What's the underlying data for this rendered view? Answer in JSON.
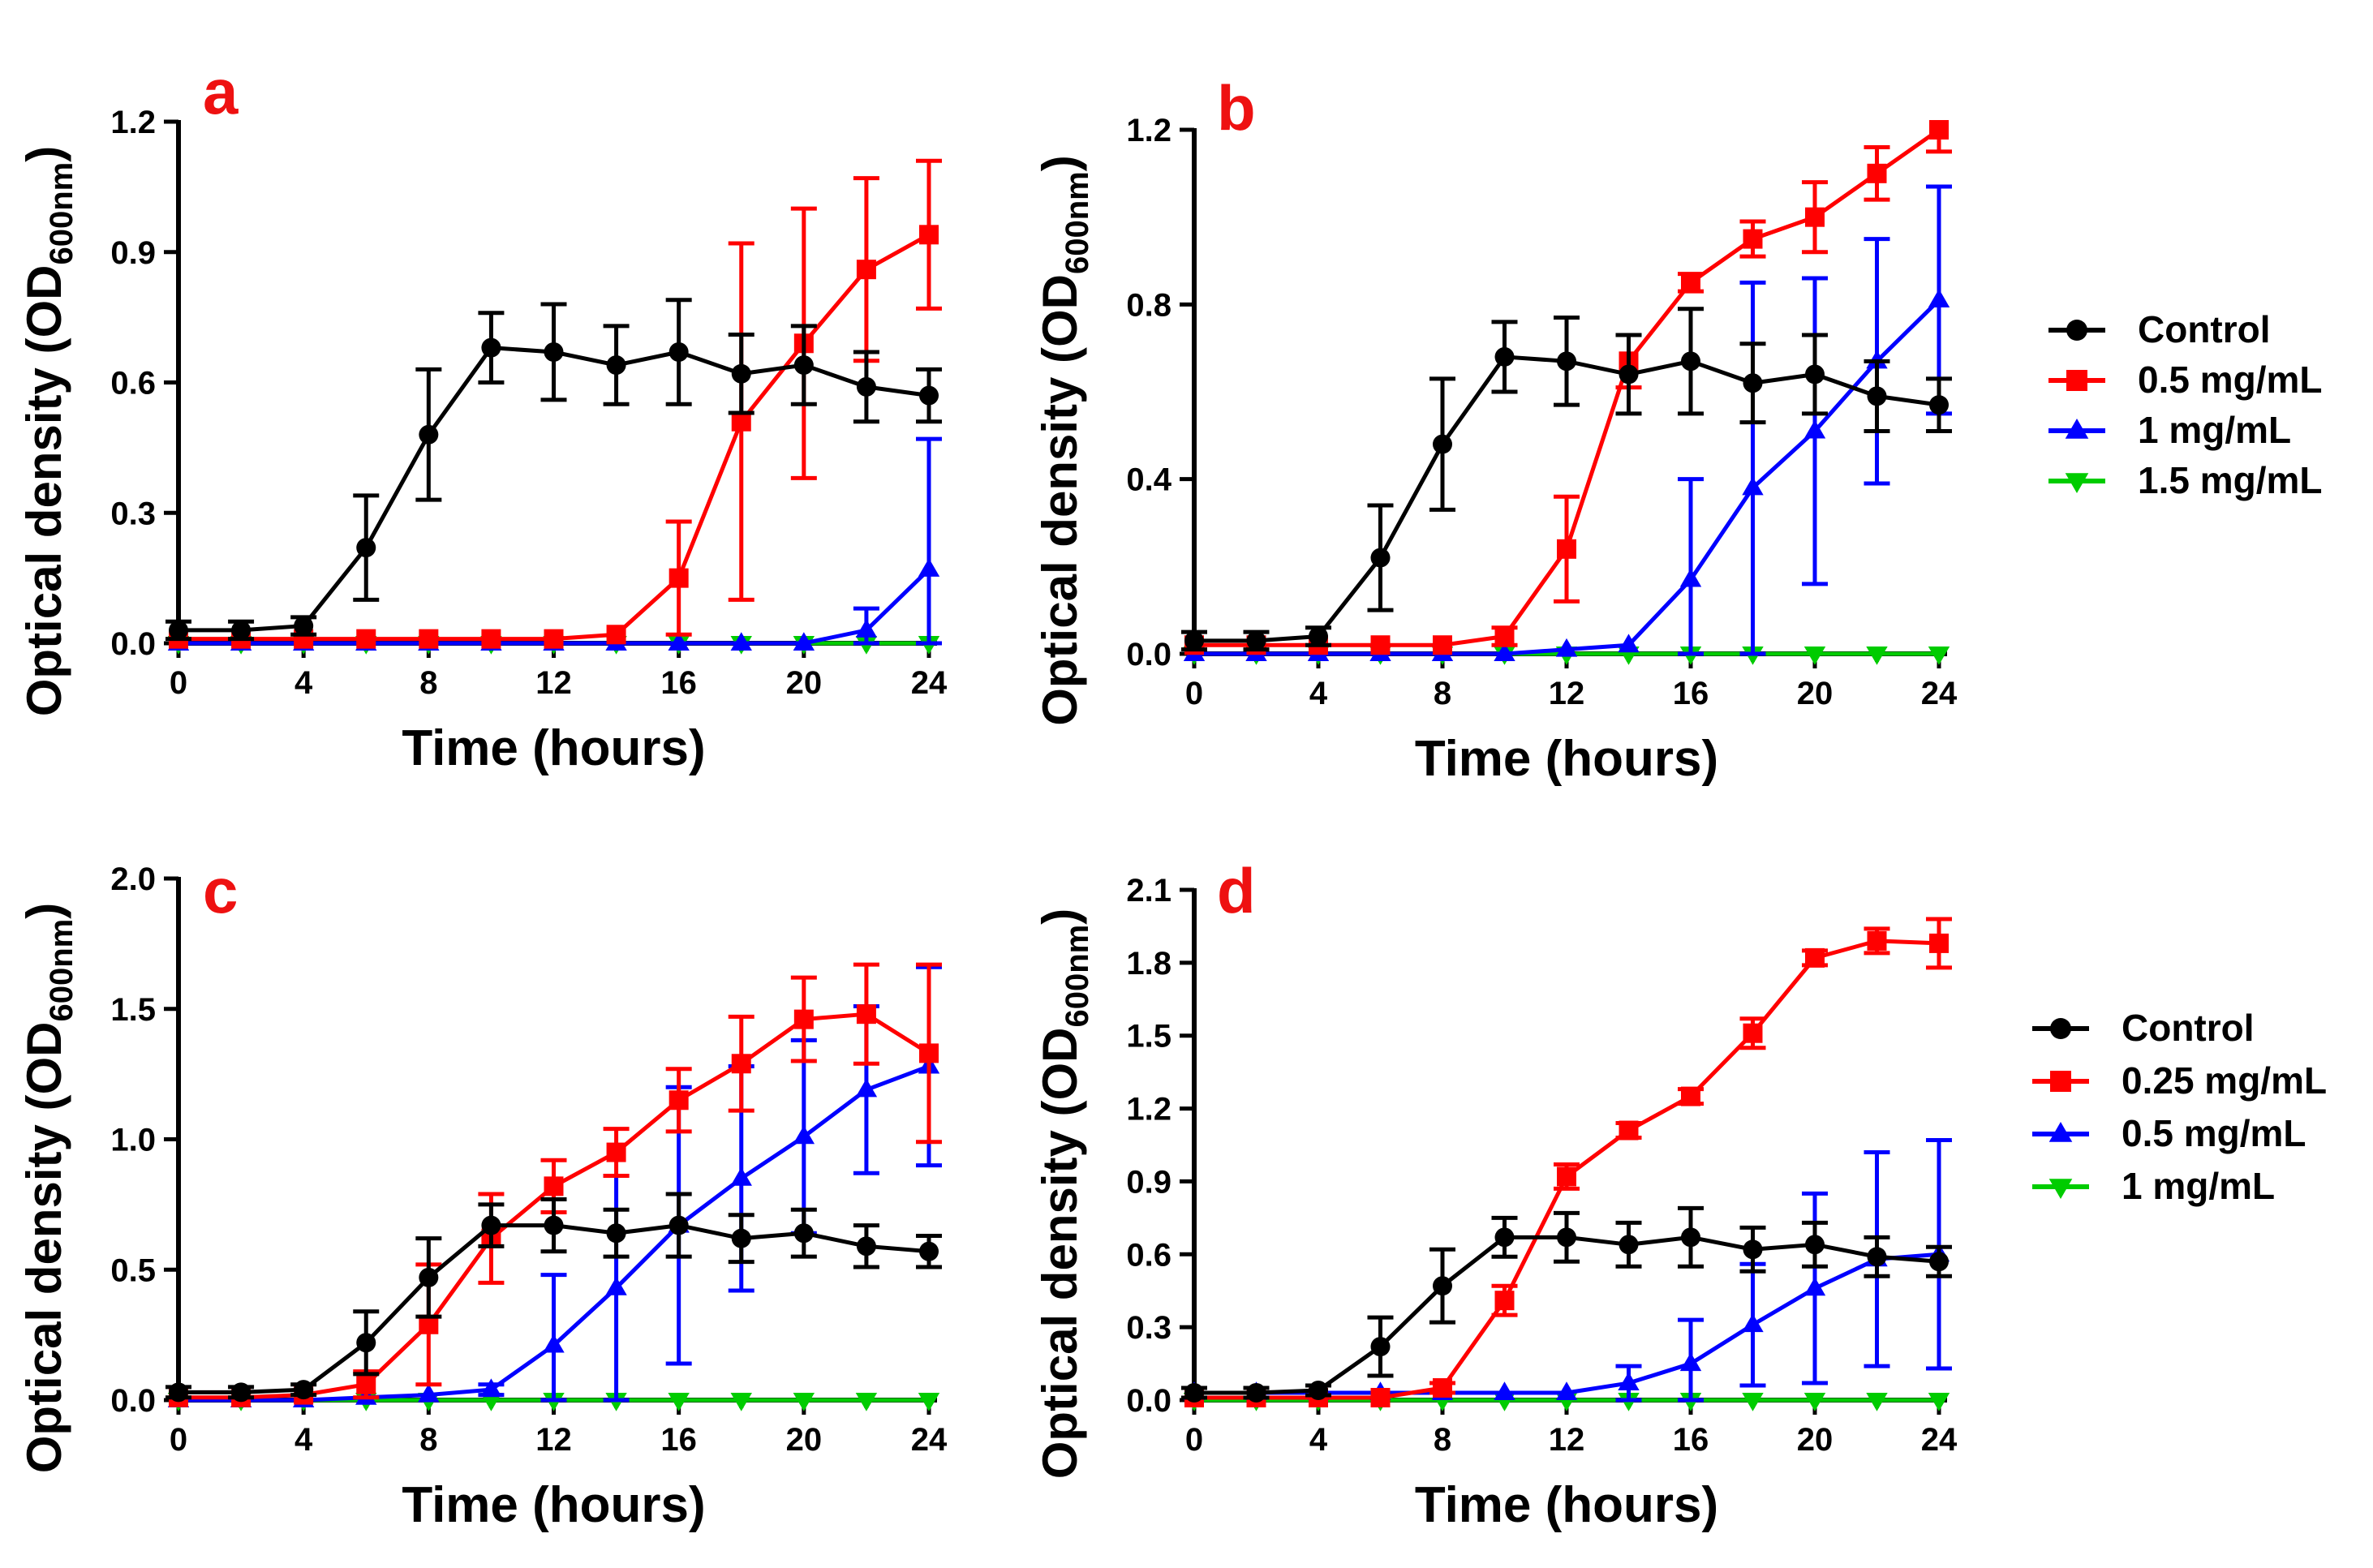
{
  "colors": {
    "control": "#000000",
    "dose1": "#ff0000",
    "dose2": "#0000ff",
    "dose3": "#00cc00",
    "panel_label": "#ee1111",
    "axis": "#000000"
  },
  "axis_text": {
    "x_label": "Time (hours)",
    "y_label_main": "Optical density (OD",
    "y_label_sub": "600nm",
    "y_label_close": ")"
  },
  "legends": [
    {
      "entries": [
        {
          "label": "Control",
          "marker": "circle",
          "color": "#000000"
        },
        {
          "label": "0.5 mg/mL",
          "marker": "square",
          "color": "#ff0000"
        },
        {
          "label": "1 mg/mL",
          "marker": "triangle-up",
          "color": "#0000ff"
        },
        {
          "label": "1.5 mg/mL",
          "marker": "triangle-down",
          "color": "#00cc00"
        }
      ]
    },
    {
      "entries": [
        {
          "label": "Control",
          "marker": "circle",
          "color": "#000000"
        },
        {
          "label": "0.25 mg/mL",
          "marker": "square",
          "color": "#ff0000"
        },
        {
          "label": "0.5 mg/mL",
          "marker": "triangle-up",
          "color": "#0000ff"
        },
        {
          "label": "1 mg/mL",
          "marker": "triangle-down",
          "color": "#00cc00"
        }
      ]
    }
  ],
  "chart_data": [
    {
      "panel": "a",
      "type": "line",
      "xlabel": "Time (hours)",
      "ylabel": "Optical density (OD600nm)",
      "xlim": [
        0,
        24
      ],
      "ylim": [
        0,
        1.2
      ],
      "xticks": [
        0,
        4,
        8,
        12,
        16,
        20,
        24
      ],
      "yticks": [
        "0.0",
        "0.3",
        "0.6",
        "0.9",
        "1.2"
      ],
      "x": [
        0,
        2,
        4,
        6,
        8,
        10,
        12,
        14,
        16,
        18,
        20,
        22,
        24
      ],
      "series": [
        {
          "name": "Control",
          "marker": "circle",
          "color": "#000000",
          "values": [
            0.03,
            0.03,
            0.04,
            0.22,
            0.48,
            0.68,
            0.67,
            0.64,
            0.67,
            0.62,
            0.64,
            0.59,
            0.57
          ],
          "errors": [
            0.02,
            0.02,
            0.02,
            0.12,
            0.15,
            0.08,
            0.11,
            0.09,
            0.12,
            0.09,
            0.09,
            0.08,
            0.06
          ]
        },
        {
          "name": "0.5 mg/mL",
          "marker": "square",
          "color": "#ff0000",
          "values": [
            0.01,
            0.01,
            0.01,
            0.01,
            0.01,
            0.01,
            0.01,
            0.02,
            0.15,
            0.51,
            0.69,
            0.86,
            0.94
          ],
          "errors": [
            0,
            0,
            0,
            0,
            0,
            0,
            0,
            0.01,
            0.13,
            0.41,
            0.31,
            0.21,
            0.17
          ]
        },
        {
          "name": "1 mg/mL",
          "marker": "triangle-up",
          "color": "#0000ff",
          "values": [
            0,
            0,
            0,
            0,
            0,
            0,
            0,
            0,
            0,
            0,
            0,
            0.03,
            0.17
          ],
          "errors": [
            0,
            0,
            0,
            0,
            0,
            0,
            0,
            0,
            0,
            0,
            0,
            0.05,
            0.3
          ]
        },
        {
          "name": "1.5 mg/mL",
          "marker": "triangle-down",
          "color": "#00cc00",
          "values": [
            0,
            0,
            0,
            0,
            0,
            0,
            0,
            0,
            0,
            0,
            0,
            0,
            0
          ],
          "errors": [
            0,
            0,
            0,
            0,
            0,
            0,
            0,
            0,
            0,
            0,
            0,
            0,
            0
          ]
        }
      ]
    },
    {
      "panel": "b",
      "type": "line",
      "xlabel": "Time (hours)",
      "ylabel": "Optical density (OD600nm)",
      "xlim": [
        0,
        24
      ],
      "ylim": [
        0,
        1.2
      ],
      "xticks": [
        0,
        4,
        8,
        12,
        16,
        20,
        24
      ],
      "yticks": [
        "0.0",
        "0.4",
        "0.8",
        "1.2"
      ],
      "x": [
        0,
        2,
        4,
        6,
        8,
        10,
        12,
        14,
        16,
        18,
        20,
        22,
        24
      ],
      "series": [
        {
          "name": "Control",
          "marker": "circle",
          "color": "#000000",
          "values": [
            0.03,
            0.03,
            0.04,
            0.22,
            0.48,
            0.68,
            0.67,
            0.64,
            0.67,
            0.62,
            0.64,
            0.59,
            0.57
          ],
          "errors": [
            0.02,
            0.02,
            0.02,
            0.12,
            0.15,
            0.08,
            0.1,
            0.09,
            0.12,
            0.09,
            0.09,
            0.08,
            0.06
          ]
        },
        {
          "name": "0.5 mg/mL",
          "marker": "square",
          "color": "#ff0000",
          "values": [
            0.02,
            0.02,
            0.02,
            0.02,
            0.02,
            0.04,
            0.24,
            0.67,
            0.85,
            0.95,
            1.0,
            1.1,
            1.2
          ],
          "errors": [
            0.01,
            0.01,
            0.01,
            0.01,
            0.01,
            0.02,
            0.12,
            0.06,
            0.02,
            0.04,
            0.08,
            0.06,
            0.05
          ]
        },
        {
          "name": "1 mg/mL",
          "marker": "triangle-up",
          "color": "#0000ff",
          "values": [
            0,
            0,
            0,
            0,
            0,
            0,
            0.01,
            0.02,
            0.17,
            0.38,
            0.51,
            0.67,
            0.81
          ],
          "errors": [
            0,
            0,
            0,
            0,
            0,
            0,
            0,
            0.01,
            0.23,
            0.47,
            0.35,
            0.28,
            0.26
          ]
        },
        {
          "name": "1.5 mg/mL",
          "marker": "triangle-down",
          "color": "#00cc00",
          "values": [
            0,
            0,
            0,
            0,
            0,
            0,
            0,
            0,
            0,
            0,
            0,
            0,
            0
          ],
          "errors": [
            0,
            0,
            0,
            0,
            0,
            0,
            0,
            0,
            0,
            0,
            0,
            0,
            0
          ]
        }
      ]
    },
    {
      "panel": "c",
      "type": "line",
      "xlabel": "Time (hours)",
      "ylabel": "Optical density (OD600nm)",
      "xlim": [
        0,
        24
      ],
      "ylim": [
        0,
        2.0
      ],
      "xticks": [
        0,
        4,
        8,
        12,
        16,
        20,
        24
      ],
      "yticks": [
        "0.0",
        "0.5",
        "1.0",
        "1.5",
        "2.0"
      ],
      "x": [
        0,
        2,
        4,
        6,
        8,
        10,
        12,
        14,
        16,
        18,
        20,
        22,
        24
      ],
      "series": [
        {
          "name": "Control",
          "marker": "circle",
          "color": "#000000",
          "values": [
            0.03,
            0.03,
            0.04,
            0.22,
            0.47,
            0.67,
            0.67,
            0.64,
            0.67,
            0.62,
            0.64,
            0.59,
            0.57
          ],
          "errors": [
            0.02,
            0.02,
            0.02,
            0.12,
            0.15,
            0.08,
            0.1,
            0.09,
            0.12,
            0.09,
            0.09,
            0.08,
            0.06
          ]
        },
        {
          "name": "0.5 mg/mL",
          "marker": "square",
          "color": "#ff0000",
          "values": [
            0.01,
            0.01,
            0.02,
            0.06,
            0.29,
            0.62,
            0.82,
            0.95,
            1.15,
            1.29,
            1.46,
            1.48,
            1.33
          ],
          "errors": [
            0.01,
            0.01,
            0.01,
            0.05,
            0.23,
            0.17,
            0.1,
            0.09,
            0.12,
            0.18,
            0.16,
            0.19,
            0.34
          ]
        },
        {
          "name": "1 mg/mL",
          "marker": "triangle-up",
          "color": "#0000ff",
          "values": [
            0,
            0,
            0,
            0.01,
            0.02,
            0.04,
            0.21,
            0.43,
            0.67,
            0.85,
            1.01,
            1.19,
            1.28
          ],
          "errors": [
            0,
            0,
            0,
            0,
            0.01,
            0.02,
            0.27,
            0.43,
            0.53,
            0.43,
            0.37,
            0.32,
            0.38
          ]
        },
        {
          "name": "1.5 mg/mL",
          "marker": "triangle-down",
          "color": "#00cc00",
          "values": [
            0,
            0,
            0,
            0,
            0,
            0,
            0,
            0,
            0,
            0,
            0,
            0,
            0
          ],
          "errors": [
            0,
            0,
            0,
            0,
            0,
            0,
            0,
            0,
            0,
            0,
            0,
            0,
            0
          ]
        }
      ]
    },
    {
      "panel": "d",
      "type": "line",
      "xlabel": "Time (hours)",
      "ylabel": "Optical density (OD600nm)",
      "xlim": [
        0,
        24
      ],
      "ylim": [
        0,
        2.1
      ],
      "xticks": [
        0,
        4,
        8,
        12,
        16,
        20,
        24
      ],
      "yticks": [
        "0.0",
        "0.3",
        "0.6",
        "0.9",
        "1.2",
        "1.5",
        "1.8",
        "2.1"
      ],
      "x": [
        0,
        2,
        4,
        6,
        8,
        10,
        12,
        14,
        16,
        18,
        20,
        22,
        24
      ],
      "series": [
        {
          "name": "Control",
          "marker": "circle",
          "color": "#000000",
          "values": [
            0.03,
            0.03,
            0.04,
            0.22,
            0.47,
            0.67,
            0.67,
            0.64,
            0.67,
            0.62,
            0.64,
            0.59,
            0.57
          ],
          "errors": [
            0.02,
            0.02,
            0.02,
            0.12,
            0.15,
            0.08,
            0.1,
            0.09,
            0.12,
            0.09,
            0.09,
            0.08,
            0.06
          ]
        },
        {
          "name": "0.25 mg/mL",
          "marker": "square",
          "color": "#ff0000",
          "values": [
            0.01,
            0.01,
            0.01,
            0.01,
            0.05,
            0.41,
            0.92,
            1.11,
            1.25,
            1.51,
            1.82,
            1.89,
            1.88
          ],
          "errors": [
            0.01,
            0.01,
            0.01,
            0.01,
            0.02,
            0.06,
            0.05,
            0.03,
            0.03,
            0.06,
            0.03,
            0.05,
            0.1
          ]
        },
        {
          "name": "0.5 mg/mL",
          "marker": "triangle-up",
          "color": "#0000ff",
          "values": [
            0.03,
            0.03,
            0.03,
            0.03,
            0.03,
            0.03,
            0.03,
            0.07,
            0.15,
            0.31,
            0.46,
            0.58,
            0.6
          ],
          "errors": [
            0.01,
            0.01,
            0.01,
            0.01,
            0.01,
            0.01,
            0.01,
            0.07,
            0.18,
            0.25,
            0.39,
            0.44,
            0.47
          ]
        },
        {
          "name": "1 mg/mL",
          "marker": "triangle-down",
          "color": "#00cc00",
          "values": [
            0,
            0,
            0,
            0,
            0,
            0,
            0,
            0,
            0,
            0,
            0,
            0,
            0
          ],
          "errors": [
            0,
            0,
            0,
            0,
            0,
            0,
            0,
            0,
            0,
            0,
            0,
            0,
            0
          ]
        }
      ]
    }
  ]
}
